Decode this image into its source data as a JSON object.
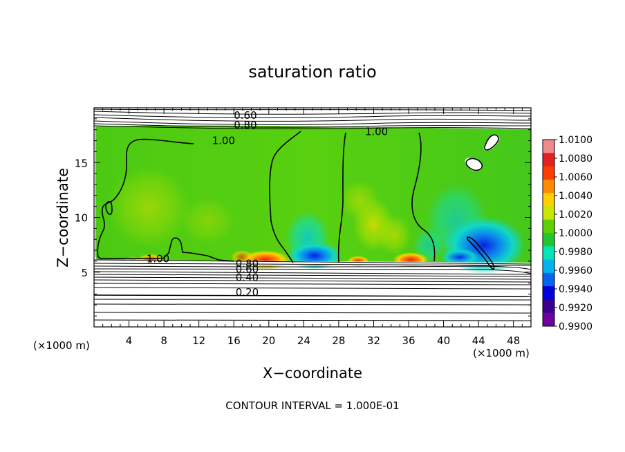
{
  "chart_data": {
    "type": "heatmap",
    "title": "saturation ratio",
    "xlabel": "X−coordinate",
    "ylabel": "Z−coordinate",
    "x_unit_left": "(×1000 m)",
    "x_unit_right": "(×1000 m)",
    "footer": "CONTOUR INTERVAL = 1.000E-01",
    "xlim": [
      0,
      50
    ],
    "ylim": [
      0,
      20
    ],
    "x_ticks": [
      4,
      8,
      12,
      16,
      20,
      24,
      28,
      32,
      36,
      40,
      44,
      48
    ],
    "y_ticks": [
      5,
      10,
      15
    ],
    "colorbar": {
      "min": 0.99,
      "max": 1.01,
      "labels": [
        "1.0100",
        "1.0080",
        "1.0060",
        "1.0040",
        "1.0020",
        "1.0000",
        "0.9980",
        "0.9960",
        "0.9940",
        "0.9920",
        "0.9900"
      ],
      "colors": [
        "#f08a8a",
        "#e52020",
        "#ff3c00",
        "#ff8c00",
        "#ffd000",
        "#c8e600",
        "#5cd000",
        "#22c82a",
        "#00e6b4",
        "#00b4f0",
        "#0064f0",
        "#0000e0",
        "#3a0090",
        "#7000a0"
      ]
    },
    "contour_labels": [
      {
        "text": "0.60",
        "x": 16.0,
        "y": 19.0
      },
      {
        "text": "0.80",
        "x": 16.0,
        "y": 18.1
      },
      {
        "text": "1.00",
        "x": 13.5,
        "y": 16.7
      },
      {
        "text": "1.00",
        "x": 31.0,
        "y": 17.5
      },
      {
        "text": "1.00",
        "x": 6.0,
        "y": 5.9
      },
      {
        "text": "0.80",
        "x": 16.2,
        "y": 5.45
      },
      {
        "text": "0.60",
        "x": 16.2,
        "y": 4.95
      },
      {
        "text": "0.40",
        "x": 16.2,
        "y": 4.2
      },
      {
        "text": "0.20",
        "x": 16.2,
        "y": 2.85
      }
    ]
  }
}
